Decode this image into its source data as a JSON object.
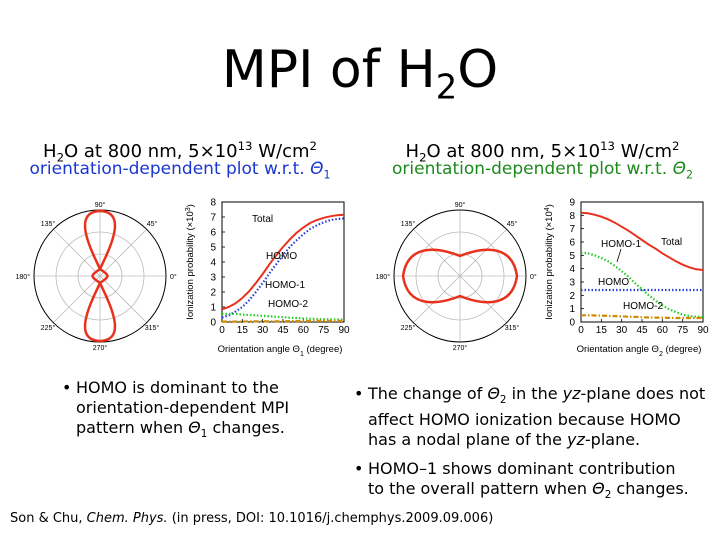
{
  "title": {
    "main": "MPI of H",
    "sub": "2",
    "tail": "O"
  },
  "left": {
    "header": {
      "h": "H",
      "h_sub": "2",
      "rest": "O at 800 nm, 5×10",
      "exp": "13",
      "unit": " W/cm",
      "unit_exp": "2"
    },
    "subheader": {
      "text": "orientation-dependent plot w.r.t. ",
      "theta": "Θ",
      "theta_sub": "1"
    },
    "bullet": {
      "line1": "HOMO is dominant to the",
      "line2": "orientation-dependent MPI",
      "line3_pre": "pattern when ",
      "theta": "Θ",
      "theta_sub": "1",
      "line3_post": " changes."
    }
  },
  "right": {
    "header": {
      "h": "H",
      "h_sub": "2",
      "rest": "O at 800 nm, 5×10",
      "exp": "13",
      "unit": " W/cm",
      "unit_exp": "2"
    },
    "subheader": {
      "text": "orientation-dependent plot w.r.t. ",
      "theta": "Θ",
      "theta_sub": "2"
    },
    "bullet1": {
      "line1_pre": "The change of ",
      "theta": "Θ",
      "theta_sub": "2",
      "line1_mid": " in the ",
      "yz": "yz",
      "line1_post": "-plane does not",
      "line2": "affect HOMO ionization because HOMO",
      "line3_pre": "has a nodal plane of the ",
      "line3_yz": "yz",
      "line3_post": "-plane."
    },
    "bullet2": {
      "line1": "HOMO–1 shows dominant contribution",
      "line2_pre": "to the overall pattern when ",
      "theta": "Θ",
      "theta_sub": "2",
      "line2_post": " changes."
    }
  },
  "polar_labels": {
    "a90": "90°",
    "a135": "135°",
    "a45": "45°",
    "a180": "180°",
    "a0": "0°",
    "a225": "225°",
    "a315": "315°",
    "a270": "270°"
  },
  "bullet_char": "•",
  "reference": {
    "pre": "Son & Chu, ",
    "journal": "Chem. Phys.",
    "post": " (in press, DOI: 10.1016/j.chemphys.2009.09.006)"
  },
  "chart_data": [
    {
      "type": "line",
      "ylabel": "Ionization probability (×10³)",
      "xlabel": "Orientation angle Θ₁ (degree)",
      "xlabel_parts": {
        "pre": "Orientation angle Θ",
        "sub": "1",
        "post": " (degree)"
      },
      "ylabel_parts": {
        "pre": "Ionization probability (×10",
        "sup": "3",
        "post": ")"
      },
      "xlim": [
        0,
        90
      ],
      "ylim": [
        0,
        8
      ],
      "xticks": [
        0,
        15,
        30,
        45,
        60,
        75,
        90
      ],
      "yticks": [
        0,
        1,
        2,
        3,
        4,
        5,
        6,
        7,
        8
      ],
      "x": [
        0,
        5,
        10,
        15,
        20,
        25,
        30,
        35,
        40,
        45,
        50,
        55,
        60,
        65,
        70,
        75,
        80,
        85,
        90
      ],
      "series": [
        {
          "name": "Total",
          "color": "#e8321e",
          "dash": "solid",
          "values": [
            0.85,
            1.0,
            1.25,
            1.6,
            2.05,
            2.6,
            3.2,
            3.85,
            4.45,
            5.0,
            5.5,
            5.95,
            6.3,
            6.6,
            6.8,
            6.95,
            7.05,
            7.12,
            7.15
          ]
        },
        {
          "name": "HOMO",
          "color": "#2a3fd8",
          "dash": "dotted",
          "values": [
            0.3,
            0.45,
            0.7,
            1.0,
            1.45,
            2.0,
            2.6,
            3.25,
            3.85,
            4.45,
            5.0,
            5.45,
            5.85,
            6.2,
            6.45,
            6.65,
            6.8,
            6.87,
            6.9
          ]
        },
        {
          "name": "HOMO-1",
          "color": "#22cc22",
          "dash": "dotted",
          "values": [
            0.55,
            0.55,
            0.53,
            0.5,
            0.47,
            0.44,
            0.41,
            0.38,
            0.35,
            0.32,
            0.29,
            0.26,
            0.24,
            0.22,
            0.2,
            0.19,
            0.18,
            0.17,
            0.17
          ]
        },
        {
          "name": "HOMO-2",
          "color": "#d08a00",
          "dash": "dashdot",
          "values": [
            0.03,
            0.03,
            0.03,
            0.03,
            0.04,
            0.04,
            0.04,
            0.05,
            0.05,
            0.05,
            0.06,
            0.06,
            0.06,
            0.07,
            0.07,
            0.07,
            0.07,
            0.07,
            0.07
          ]
        }
      ]
    },
    {
      "type": "line",
      "ylabel": "Ionization probability (×10⁴)",
      "xlabel": "Orientation angle Θ₂ (degree)",
      "xlabel_parts": {
        "pre": "Orientation angle Θ",
        "sub": "2",
        "post": " (degree)"
      },
      "ylabel_parts": {
        "pre": "Ionization probability (×10",
        "sup": "4",
        "post": ")"
      },
      "xlim": [
        0,
        90
      ],
      "ylim": [
        0,
        9
      ],
      "xticks": [
        0,
        15,
        30,
        45,
        60,
        75,
        90
      ],
      "yticks": [
        0,
        1,
        2,
        3,
        4,
        5,
        6,
        7,
        8,
        9
      ],
      "x": [
        0,
        5,
        10,
        15,
        20,
        25,
        30,
        35,
        40,
        45,
        50,
        55,
        60,
        65,
        70,
        75,
        80,
        85,
        90
      ],
      "series": [
        {
          "name": "Total",
          "color": "#e8321e",
          "dash": "solid",
          "values": [
            8.2,
            8.15,
            8.05,
            7.9,
            7.7,
            7.45,
            7.15,
            6.85,
            6.5,
            6.15,
            5.8,
            5.5,
            5.15,
            4.85,
            4.55,
            4.3,
            4.1,
            3.95,
            3.9
          ]
        },
        {
          "name": "HOMO-1",
          "color": "#22cc22",
          "dash": "dotted",
          "values": [
            5.2,
            5.15,
            5.0,
            4.8,
            4.55,
            4.2,
            3.8,
            3.4,
            2.9,
            2.45,
            2.0,
            1.6,
            1.25,
            0.95,
            0.75,
            0.55,
            0.45,
            0.4,
            0.38
          ]
        },
        {
          "name": "HOMO",
          "color": "#2a3fd8",
          "dash": "dotted",
          "values": [
            2.4,
            2.4,
            2.4,
            2.4,
            2.4,
            2.4,
            2.4,
            2.4,
            2.4,
            2.4,
            2.4,
            2.4,
            2.4,
            2.4,
            2.4,
            2.4,
            2.4,
            2.4,
            2.4
          ]
        },
        {
          "name": "HOMO-2",
          "color": "#d08a00",
          "dash": "dashdot",
          "values": [
            0.5,
            0.5,
            0.49,
            0.48,
            0.46,
            0.44,
            0.42,
            0.4,
            0.38,
            0.36,
            0.34,
            0.33,
            0.32,
            0.31,
            0.3,
            0.3,
            0.3,
            0.3,
            0.3
          ]
        }
      ]
    }
  ],
  "polar_data": [
    {
      "shape": "figure-eight along 90°–270°, narrow waist at 0°/180°",
      "color": "#e8321e"
    },
    {
      "shape": "peanut along 0°–180°, pinched at 90°/270°",
      "color": "#e8321e"
    }
  ]
}
